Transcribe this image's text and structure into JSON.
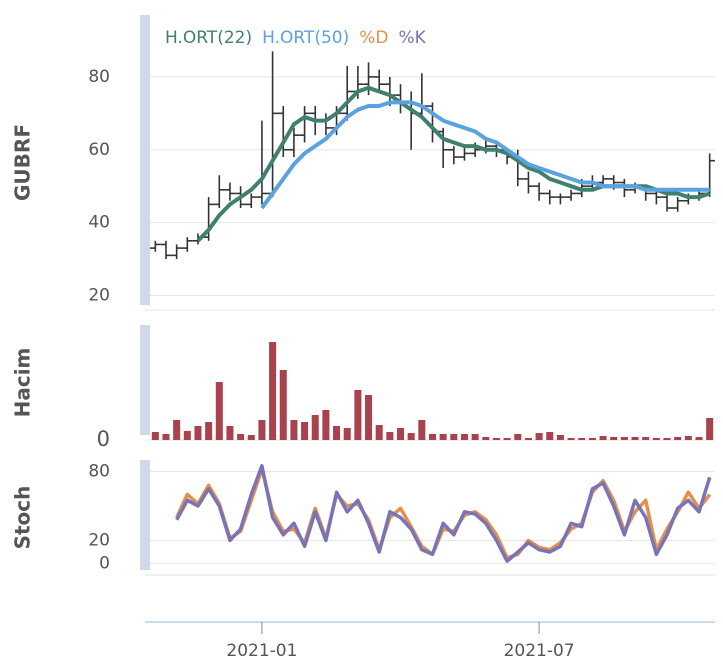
{
  "chart_data": {
    "type": "stock",
    "grid": true,
    "categories": [
      null,
      null,
      null,
      null,
      null,
      null,
      null,
      null,
      null,
      null,
      "2021-01",
      null,
      null,
      null,
      null,
      null,
      null,
      null,
      null,
      null,
      null,
      null,
      null,
      null,
      null,
      null,
      null,
      null,
      null,
      null,
      null,
      null,
      null,
      null,
      null,
      null,
      "2021-07",
      null,
      null,
      null,
      null,
      null,
      null,
      null,
      null,
      null,
      null,
      null,
      null,
      null,
      null,
      null,
      null
    ],
    "panels": [
      {
        "type": "ohlc",
        "ylabel": "GUBRF",
        "color": "#333333",
        "ylim": [
          16,
          97
        ],
        "yticks": [
          20,
          40,
          60,
          80
        ],
        "open": [
          33,
          34,
          31,
          33,
          35,
          36,
          45,
          49,
          48,
          45,
          47,
          48,
          70,
          60,
          64,
          70,
          68,
          66,
          70,
          76,
          78,
          80,
          78,
          75,
          73,
          70,
          72,
          65,
          60,
          58,
          59,
          60,
          61,
          60,
          58,
          52,
          50,
          48,
          47,
          47,
          48,
          50,
          51,
          52,
          51,
          49,
          50,
          48,
          47,
          44,
          46,
          47,
          48
        ],
        "high": [
          35,
          35,
          34,
          36,
          37,
          47,
          53,
          51,
          50,
          48,
          68,
          87,
          72,
          66,
          72,
          72,
          70,
          72,
          83,
          83,
          84,
          82,
          80,
          78,
          76,
          81,
          73,
          66,
          61,
          61,
          62,
          63,
          62,
          60,
          60,
          54,
          51,
          49,
          48,
          49,
          52,
          53,
          53,
          53,
          52,
          51,
          50,
          49,
          48,
          47,
          48,
          49,
          59
        ],
        "low": [
          32,
          30,
          30,
          32,
          34,
          35,
          44,
          46,
          44,
          44,
          45,
          47,
          58,
          58,
          62,
          64,
          64,
          64,
          68,
          74,
          75,
          76,
          72,
          70,
          60,
          69,
          62,
          55,
          56,
          57,
          58,
          59,
          58,
          56,
          50,
          48,
          46,
          45,
          45,
          46,
          47,
          49,
          50,
          49,
          47,
          48,
          46,
          45,
          43,
          43,
          45,
          46,
          47
        ],
        "close": [
          34,
          31,
          33,
          35,
          36,
          45,
          49,
          48,
          45,
          47,
          48,
          70,
          60,
          64,
          70,
          68,
          66,
          70,
          76,
          78,
          80,
          78,
          75,
          73,
          70,
          72,
          65,
          60,
          58,
          59,
          60,
          61,
          60,
          58,
          52,
          50,
          48,
          47,
          47,
          48,
          50,
          51,
          52,
          51,
          49,
          50,
          48,
          47,
          44,
          46,
          47,
          48,
          57
        ],
        "series": [
          {
            "name": "H.ORT(22)",
            "color": "#3f8070",
            "values": [
              null,
              null,
              null,
              null,
              35,
              38,
              42,
              45,
              47,
              49,
              52,
              57,
              62,
              67,
              69,
              68,
              68,
              70,
              73,
              76,
              77,
              76,
              75,
              73,
              71,
              69,
              66,
              63,
              62,
              61,
              61,
              60,
              60,
              59,
              57,
              55,
              54,
              52,
              51,
              50,
              49,
              49,
              50,
              50,
              50,
              50,
              50,
              49,
              48,
              48,
              47,
              47,
              48
            ]
          },
          {
            "name": "H.ORT(50)",
            "color": "#5aa2e0",
            "values": [
              null,
              null,
              null,
              null,
              null,
              null,
              null,
              null,
              null,
              null,
              44,
              48,
              52,
              56,
              59,
              61,
              63,
              66,
              69,
              71,
              72,
              72,
              73,
              73,
              73,
              72,
              70,
              68,
              67,
              66,
              65,
              63,
              62,
              60,
              58,
              56,
              55,
              54,
              53,
              52,
              51,
              51,
              50,
              50,
              50,
              50,
              49,
              49,
              49,
              49,
              49,
              49,
              49
            ]
          }
        ]
      },
      {
        "type": "bar",
        "ylabel": "Hacim",
        "color": "#a8434e",
        "ylim": [
          0,
          115
        ],
        "yticks": [
          0
        ],
        "values": [
          8,
          6,
          20,
          9,
          14,
          18,
          58,
          14,
          6,
          5,
          20,
          98,
          70,
          20,
          18,
          25,
          30,
          14,
          12,
          50,
          45,
          15,
          8,
          12,
          7,
          20,
          6,
          6,
          6,
          6,
          6,
          3,
          2,
          2,
          6,
          2,
          7,
          8,
          5,
          2,
          2,
          2,
          4,
          3,
          3,
          3,
          3,
          2,
          2,
          3,
          4,
          3,
          22
        ]
      },
      {
        "type": "line",
        "ylabel": "Stoch",
        "ylim": [
          -10,
          90
        ],
        "yticks": [
          0,
          20,
          80
        ],
        "series": [
          {
            "name": "%D",
            "color": "#e0914a",
            "values": [
              null,
              null,
              40,
              60,
              52,
              68,
              52,
              22,
              28,
              55,
              82,
              45,
              28,
              30,
              18,
              48,
              22,
              60,
              50,
              52,
              38,
              12,
              40,
              48,
              32,
              15,
              8,
              30,
              28,
              42,
              45,
              38,
              25,
              5,
              8,
              20,
              14,
              12,
              18,
              30,
              35,
              62,
              72,
              55,
              28,
              45,
              55,
              12,
              30,
              45,
              62,
              48,
              60
            ]
          },
          {
            "name": "%K",
            "color": "#7a73b8",
            "values": [
              null,
              null,
              38,
              55,
              50,
              65,
              50,
              20,
              30,
              60,
              85,
              40,
              25,
              35,
              15,
              45,
              20,
              62,
              45,
              55,
              35,
              10,
              45,
              40,
              30,
              12,
              8,
              35,
              25,
              45,
              43,
              35,
              20,
              2,
              10,
              18,
              12,
              10,
              15,
              35,
              32,
              65,
              70,
              50,
              25,
              55,
              40,
              8,
              25,
              48,
              55,
              45,
              75
            ]
          }
        ]
      }
    ]
  }
}
